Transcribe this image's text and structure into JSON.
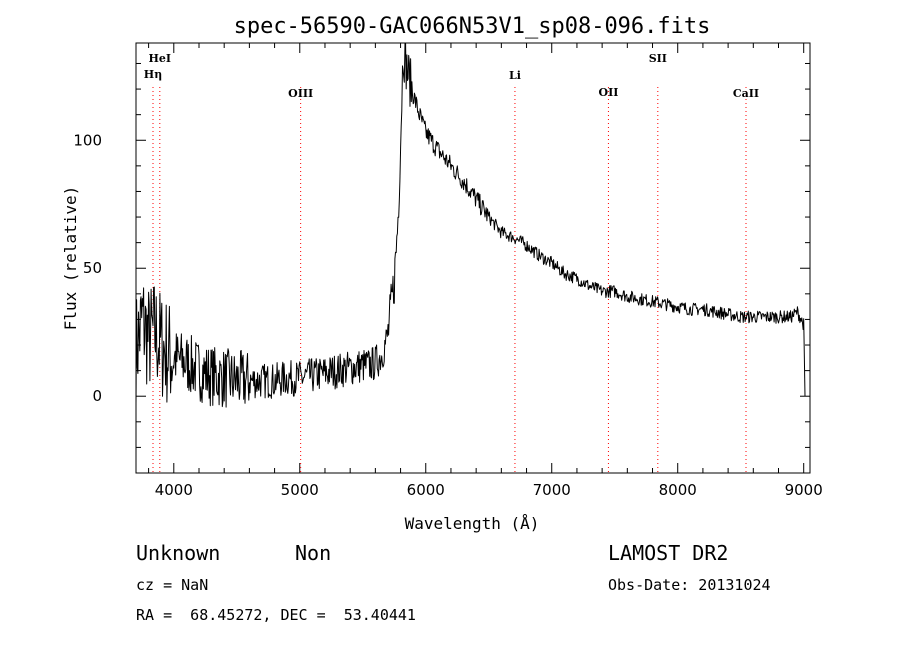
{
  "chart_data": {
    "type": "line",
    "title": "spec-56590-GAC066N53V1_sp08-096.fits",
    "xlabel": "Wavelength (Å)",
    "ylabel": "Flux (relative)",
    "xlim": [
      3700,
      9050
    ],
    "ylim": [
      -30,
      138
    ],
    "xticks": [
      4000,
      5000,
      6000,
      7000,
      8000,
      9000
    ],
    "xtick_labels": [
      "4000",
      "5000",
      "6000",
      "7000",
      "8000",
      "9000"
    ],
    "yticks": [
      0,
      50,
      100
    ],
    "ytick_labels": [
      "0",
      "50",
      "100"
    ],
    "grid": false,
    "series": [
      {
        "color": "#000000",
        "x": [
          3700,
          3750,
          3800,
          3850,
          3900,
          3950,
          4000,
          4100,
          4200,
          4300,
          4400,
          4500,
          4600,
          4700,
          4800,
          4900,
          5000,
          5100,
          5200,
          5300,
          5400,
          5500,
          5550,
          5600,
          5650,
          5700,
          5750,
          5780,
          5800,
          5820,
          5850,
          5900,
          5950,
          6000,
          6100,
          6200,
          6300,
          6400,
          6500,
          6600,
          6700,
          6800,
          6900,
          7000,
          7100,
          7200,
          7300,
          7400,
          7500,
          7600,
          7700,
          7800,
          7900,
          8000,
          8100,
          8200,
          8300,
          8400,
          8500,
          8600,
          8700,
          8800,
          8900,
          8950,
          9000,
          9010
        ],
        "y": [
          18,
          30,
          22,
          25,
          20,
          17,
          15,
          13,
          10,
          8,
          7,
          6,
          6,
          6,
          6,
          7,
          7,
          8,
          9,
          10,
          11,
          12,
          12,
          13,
          16,
          24,
          45,
          70,
          100,
          135,
          128,
          118,
          110,
          103,
          96,
          90,
          84,
          77,
          70,
          64,
          62,
          59,
          55,
          52,
          48,
          46,
          43,
          41,
          41,
          39,
          38,
          37,
          36,
          35,
          34,
          34,
          33,
          32,
          31,
          31,
          31,
          31,
          31,
          33,
          28,
          0
        ]
      }
    ],
    "annotations": [
      {
        "label": "HeI",
        "x": 3889
      },
      {
        "label": "Hη",
        "x": 3835
      },
      {
        "label": "OIII",
        "x": 5007
      },
      {
        "label": "Li",
        "x": 6708
      },
      {
        "label": "OII",
        "x": 7450
      },
      {
        "label": "SII",
        "x": 7842
      },
      {
        "label": "CaII",
        "x": 8542
      }
    ],
    "line_color": "#ff0000"
  },
  "info": {
    "object_class": "Unknown",
    "subclass": "Non",
    "survey": "LAMOST DR2",
    "redshift": "cz = NaN",
    "obs_date": "Obs-Date: 20131024",
    "coords": "RA =  68.45272, DEC =  53.40441"
  }
}
